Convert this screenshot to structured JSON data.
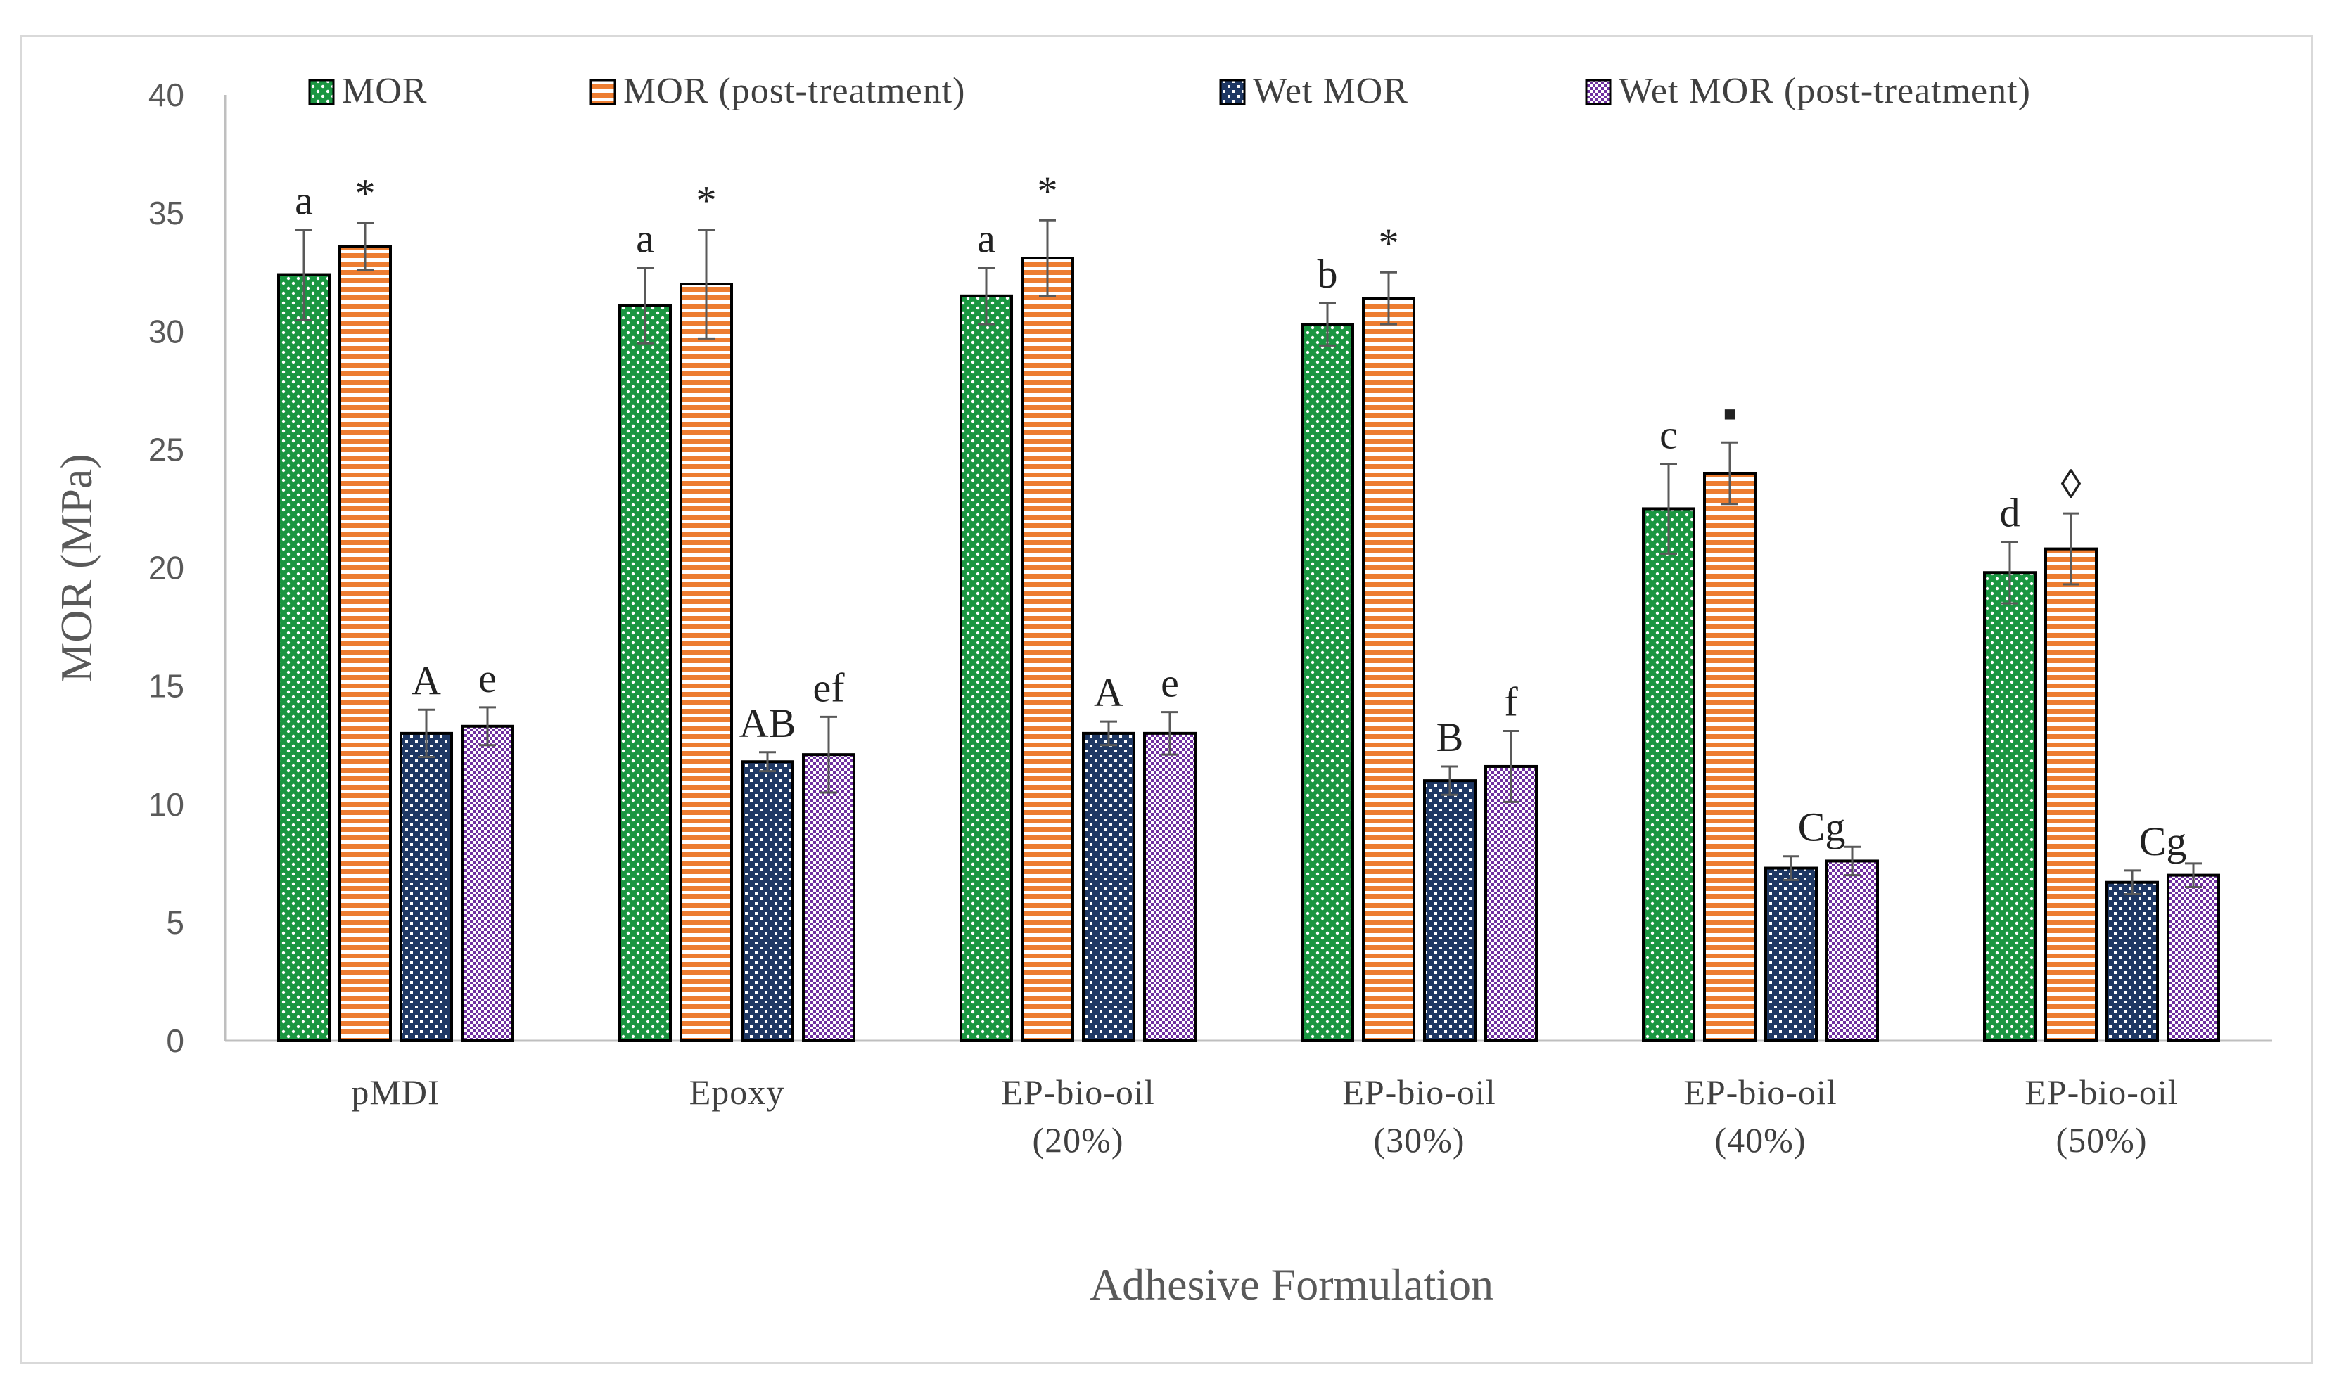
{
  "chart_data": {
    "type": "bar",
    "title": "",
    "xlabel": "Adhesive Formulation",
    "ylabel": "MOR (MPa)",
    "ylim": [
      0,
      40
    ],
    "yticks": [
      "0",
      "5",
      "10",
      "15",
      "20",
      "25",
      "30",
      "35",
      "40"
    ],
    "grid": false,
    "legend_position": "top",
    "categories": [
      [
        "pMDI"
      ],
      [
        "Epoxy"
      ],
      [
        "EP-bio-oil",
        "(20%)"
      ],
      [
        "EP-bio-oil",
        "(30%)"
      ],
      [
        "EP-bio-oil",
        "(40%)"
      ],
      [
        "EP-bio-oil",
        "(50%)"
      ]
    ],
    "series": [
      {
        "name": "MOR",
        "color": "#1a9641",
        "pattern": "dots",
        "values": [
          32.4,
          31.1,
          31.5,
          30.3,
          22.5,
          19.8
        ],
        "errors": [
          1.9,
          1.6,
          1.2,
          0.9,
          1.9,
          1.3
        ]
      },
      {
        "name": "MOR (post-treatment)",
        "color": "#ed7d31",
        "pattern": "horizontal-stripes",
        "values": [
          33.6,
          32.0,
          33.1,
          31.4,
          24.0,
          20.8
        ],
        "errors": [
          1.0,
          2.3,
          1.6,
          1.1,
          1.3,
          1.5
        ]
      },
      {
        "name": "Wet MOR",
        "color": "#1f3864",
        "pattern": "checker",
        "values": [
          13.0,
          11.8,
          13.0,
          11.0,
          7.3,
          6.7
        ],
        "errors": [
          1.0,
          0.4,
          0.5,
          0.6,
          0.5,
          0.5
        ]
      },
      {
        "name": "Wet MOR (post-treatment)",
        "color": "#7030a0",
        "pattern": "fine-checker",
        "values": [
          13.3,
          12.1,
          13.0,
          11.6,
          7.6,
          7.0
        ],
        "errors": [
          0.8,
          1.6,
          0.9,
          1.5,
          0.6,
          0.5
        ]
      }
    ],
    "annotations": [
      [
        "a",
        "*",
        "A",
        "e"
      ],
      [
        "a",
        "*",
        "AB",
        "ef"
      ],
      [
        "a",
        "*",
        "A",
        "e"
      ],
      [
        "b",
        "*",
        "B",
        "f"
      ],
      [
        "c",
        "▪",
        "Cg",
        ""
      ],
      [
        "d",
        "◊",
        "Cg",
        ""
      ]
    ]
  }
}
